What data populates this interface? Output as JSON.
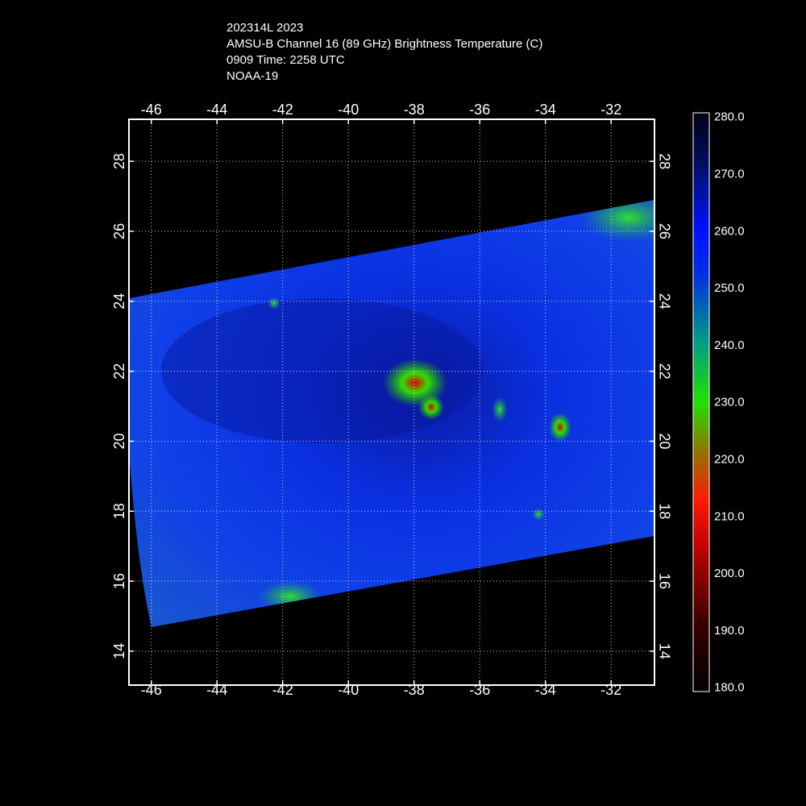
{
  "header": {
    "lines": [
      "202314L 2023",
      "AMSU-B Channel 16 (89 GHz) Brightness Temperature (C)",
      "0909 Time: 2258 UTC",
      "NOAA-19"
    ]
  },
  "map": {
    "xlim": [
      -46.68,
      -30.68
    ],
    "ylim": [
      13.03,
      29.2
    ],
    "xticks": [
      -46,
      -44,
      -42,
      -40,
      -38,
      -36,
      -34,
      -32
    ],
    "yticks": [
      14,
      16,
      18,
      20,
      22,
      24,
      26,
      28
    ],
    "grid": true
  },
  "colorbar": {
    "lim": [
      179.4,
      280.8
    ],
    "ticks": [
      {
        "value": 180,
        "label": "180.0"
      },
      {
        "value": 190,
        "label": "190.0"
      },
      {
        "value": 200,
        "label": "200.0"
      },
      {
        "value": 210,
        "label": "210.0"
      },
      {
        "value": 220,
        "label": "220.0"
      },
      {
        "value": 230,
        "label": "230.0"
      },
      {
        "value": 240,
        "label": "240.0"
      },
      {
        "value": 250,
        "label": "250.0"
      },
      {
        "value": 260,
        "label": "260.0"
      },
      {
        "value": 270,
        "label": "270.0"
      },
      {
        "value": 280,
        "label": "280.0"
      }
    ]
  }
}
